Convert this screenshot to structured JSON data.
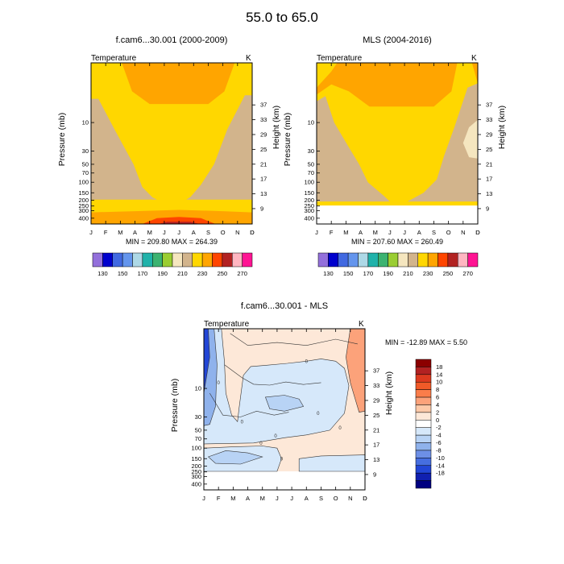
{
  "figure": {
    "title": "55.0 to  65.0"
  },
  "months": [
    "J",
    "F",
    "M",
    "A",
    "M",
    "J",
    "J",
    "A",
    "S",
    "O",
    "N",
    "D"
  ],
  "pressure_ticks": [
    {
      "p": 10,
      "label": "10"
    },
    {
      "p": 30,
      "label": "30"
    },
    {
      "p": 50,
      "label": "50"
    },
    {
      "p": 70,
      "label": "70"
    },
    {
      "p": 100,
      "label": "100"
    },
    {
      "p": 150,
      "label": "150"
    },
    {
      "p": 200,
      "label": "200"
    },
    {
      "p": 250,
      "label": "250"
    },
    {
      "p": 300,
      "label": "300"
    },
    {
      "p": 400,
      "label": "400"
    }
  ],
  "height_ticks": [
    {
      "km": 9,
      "label": "9"
    },
    {
      "km": 13,
      "label": "13"
    },
    {
      "km": 17,
      "label": "17"
    },
    {
      "km": 21,
      "label": "21"
    },
    {
      "km": 25,
      "label": "25"
    },
    {
      "km": 29,
      "label": "29"
    },
    {
      "km": 33,
      "label": "33"
    },
    {
      "km": 37,
      "label": "37"
    }
  ],
  "abs_colorbar": {
    "colors": [
      "#9370db",
      "#0000cd",
      "#4169e1",
      "#6495ed",
      "#add8e6",
      "#20b2aa",
      "#3cb371",
      "#9acd32",
      "#f5e6bf",
      "#d2b48c",
      "#ffd700",
      "#ffa500",
      "#ff4500",
      "#b22222",
      "#ffb6c1",
      "#ff1493"
    ],
    "labels": [
      "130",
      "150",
      "170",
      "190",
      "210",
      "230",
      "250",
      "270"
    ]
  },
  "diff_colorbar": {
    "colors": [
      "#8b0000",
      "#b22222",
      "#dc3a1f",
      "#f05a28",
      "#fa7d4a",
      "#fca27a",
      "#fdc9a8",
      "#fde8d8",
      "#ffffff",
      "#d6e8fa",
      "#b8d3f5",
      "#8fb2ec",
      "#6d8fe6",
      "#466ee0",
      "#2246d6",
      "#1020b0",
      "#000080"
    ],
    "labels": [
      "18",
      "14",
      "10",
      "8",
      "6",
      "4",
      "2",
      "0",
      "-2",
      "-4",
      "-6",
      "-8",
      "-10",
      "-14",
      "-18"
    ]
  },
  "chart_data": [
    {
      "type": "contour",
      "title": "f.cam6...30.001 (2000-2009)",
      "left_label": "Temperature",
      "right_label": "K",
      "xlabel": "",
      "ylabel": "Pressure (mb)",
      "ylabel_right": "Height (km)",
      "stats_text": "MIN = 209.80  MAX = 264.39",
      "min": 209.8,
      "max": 264.39,
      "y_range_mb": [
        1,
        500
      ],
      "data_bottom_mb": 500,
      "regions": [
        {
          "level": 250,
          "color": "#b22222",
          "bounds": [
            [
              4.0,
              1
            ],
            [
              4.0,
              1.6
            ],
            [
              5.0,
              2.2
            ],
            [
              6.0,
              2.2
            ],
            [
              7.0,
              1.6
            ],
            [
              7.0,
              1
            ]
          ]
        },
        {
          "level": 260,
          "color": "#ffb6c1",
          "bounds": [
            [
              5.0,
              1
            ],
            [
              5.2,
              1.3
            ],
            [
              6.8,
              1.3
            ],
            [
              7.0,
              1
            ]
          ]
        },
        {
          "level": 240,
          "color": "#ff4500",
          "bounds": [
            [
              3.0,
              1
            ],
            [
              3.6,
              2.3
            ],
            [
              4.6,
              3.4
            ],
            [
              6.4,
              3.4
            ],
            [
              7.4,
              2.3
            ],
            [
              8.0,
              1
            ]
          ]
        },
        {
          "level": 230,
          "color": "#ffa500",
          "bounds": [
            [
              2.1,
              1
            ],
            [
              2.8,
              3.0
            ],
            [
              4.0,
              4.9
            ],
            [
              8.0,
              4.9
            ],
            [
              9.1,
              3.0
            ],
            [
              9.8,
              1
            ]
          ]
        },
        {
          "level": 230,
          "color": "#ffa500",
          "bounds": [
            [
              0,
              320
            ],
            [
              3,
              305
            ],
            [
              6,
              290
            ],
            [
              9,
              305
            ],
            [
              11,
              320
            ],
            [
              11,
              500
            ],
            [
              0,
              500
            ]
          ]
        },
        {
          "level": 240,
          "color": "#ff4500",
          "bounds": [
            [
              3.5,
              500
            ],
            [
              4.5,
              400
            ],
            [
              6,
              380
            ],
            [
              7.5,
              400
            ],
            [
              8.5,
              500
            ]
          ]
        },
        {
          "level": 250,
          "color": "#b22222",
          "bounds": [
            [
              4.6,
              500
            ],
            [
              5.2,
              460
            ],
            [
              6.8,
              460
            ],
            [
              7.4,
              500
            ]
          ]
        },
        {
          "level": 210,
          "color": "#d2b48c",
          "bounds": [
            [
              0,
              4
            ],
            [
              0.5,
              4
            ],
            [
              1.6,
              13
            ],
            [
              2.9,
              50
            ],
            [
              3.5,
              120
            ],
            [
              4.2,
              180
            ],
            [
              4.5,
              195
            ],
            [
              0,
              195
            ]
          ]
        },
        {
          "level": 210,
          "color": "#d2b48c",
          "bounds": [
            [
              11,
              3.5
            ],
            [
              10.5,
              3.5
            ],
            [
              9.3,
              13
            ],
            [
              8.4,
              50
            ],
            [
              7.5,
              110
            ],
            [
              6.8,
              175
            ],
            [
              6.5,
              195
            ],
            [
              11,
              195
            ]
          ]
        }
      ],
      "base_color": "#ffd700"
    },
    {
      "type": "contour",
      "title": "MLS (2004-2016)",
      "left_label": "Temperature",
      "right_label": "K",
      "xlabel": "",
      "ylabel": "Pressure (mb)",
      "ylabel_right": "Height (km)",
      "stats_text": "MIN = 207.60  MAX = 260.49",
      "min": 207.6,
      "max": 260.49,
      "y_range_mb": [
        1,
        500
      ],
      "data_bottom_mb": 245,
      "regions": [
        {
          "level": 240,
          "color": "#ff4500",
          "bounds": [
            [
              2.8,
              1
            ],
            [
              3.2,
              2.2
            ],
            [
              4.5,
              3.3
            ],
            [
              6.5,
              3.3
            ],
            [
              7.8,
              2.2
            ],
            [
              8.2,
              1
            ]
          ]
        },
        {
          "level": 250,
          "color": "#b22222",
          "bounds": [
            [
              3.6,
              1
            ],
            [
              4.3,
              1.9
            ],
            [
              6.8,
              1.9
            ],
            [
              7.4,
              1
            ]
          ]
        },
        {
          "level": 230,
          "color": "#ffa500",
          "bounds": [
            [
              0,
              2.6
            ],
            [
              1.0,
              1.4
            ],
            [
              1.4,
              1
            ],
            [
              9.6,
              1
            ],
            [
              9.2,
              3.0
            ],
            [
              8.0,
              5.4
            ],
            [
              3.6,
              5.4
            ],
            [
              2.2,
              3.0
            ],
            [
              1.0,
              2.3
            ],
            [
              0,
              3.4
            ]
          ]
        },
        {
          "level": 230,
          "color": "#ffa500",
          "bounds": [
            [
              10.6,
              1
            ],
            [
              11,
              1
            ],
            [
              11,
              2.2
            ]
          ]
        },
        {
          "level": 210,
          "color": "#d2b48c",
          "bounds": [
            [
              0,
              4.4
            ],
            [
              0.6,
              3.6
            ],
            [
              1.2,
              10
            ],
            [
              2.2,
              26
            ],
            [
              2.9,
              50
            ],
            [
              3.5,
              100
            ],
            [
              4.6,
              170
            ],
            [
              5.0,
              210
            ],
            [
              0,
              210
            ]
          ]
        },
        {
          "level": 210,
          "color": "#d2b48c",
          "bounds": [
            [
              11,
              2.2
            ],
            [
              10.3,
              2.6
            ],
            [
              9.4,
              12
            ],
            [
              8.7,
              36
            ],
            [
              8.2,
              90
            ],
            [
              7.3,
              150
            ],
            [
              6.2,
              210
            ],
            [
              11,
              210
            ]
          ]
        },
        {
          "level": 200,
          "color": "#f5e6bf",
          "bounds": [
            [
              11,
              9
            ],
            [
              10.4,
              12
            ],
            [
              10.0,
              22
            ],
            [
              10.4,
              38
            ],
            [
              11,
              40
            ]
          ]
        }
      ],
      "base_color": "#ffd700"
    },
    {
      "type": "contour",
      "title": "f.cam6...30.001 - MLS",
      "left_label": "Temperature",
      "right_label": "K",
      "xlabel": "",
      "ylabel": "Pressure (mb)",
      "ylabel_right": "Height (km)",
      "stats_text": "MIN = -12.89  MAX =   5.50",
      "min": -12.89,
      "max": 5.5,
      "y_range_mb": [
        1,
        500
      ],
      "data_bottom_mb": 245,
      "base_color": "#fde8d8",
      "contour_label": "0",
      "regions": [
        {
          "level": 2,
          "color": "#fca27a",
          "bounds": [
            [
              10.0,
              1
            ],
            [
              11,
              1
            ],
            [
              11,
              24
            ],
            [
              10.6,
              25
            ],
            [
              10.0,
              8
            ],
            [
              9.7,
              3
            ]
          ]
        },
        {
          "level": -2,
          "color": "#d6e8fa",
          "bounds": [
            [
              0,
              1
            ],
            [
              1.2,
              1
            ],
            [
              1.4,
              3.5
            ],
            [
              1.5,
              12
            ],
            [
              1.9,
              28
            ],
            [
              2.3,
              36
            ],
            [
              2.4,
              22
            ],
            [
              2.7,
              6
            ],
            [
              3.2,
              4.3
            ],
            [
              4.2,
              4.1
            ],
            [
              5.7,
              3.8
            ],
            [
              7.0,
              3.5
            ],
            [
              8.0,
              3.2
            ],
            [
              9.0,
              3.5
            ],
            [
              9.6,
              4.6
            ],
            [
              9.9,
              9
            ],
            [
              9.6,
              26
            ],
            [
              8.6,
              50
            ],
            [
              7.0,
              60
            ],
            [
              5.5,
              67
            ],
            [
              3.4,
              82
            ],
            [
              0,
              85
            ]
          ]
        },
        {
          "level": -2,
          "color": "#d6e8fa",
          "bounds": [
            [
              0,
              100
            ],
            [
              2.0,
              95
            ],
            [
              4.0,
              92
            ],
            [
              5.0,
              100
            ],
            [
              5.3,
              150
            ],
            [
              5.0,
              245
            ],
            [
              0,
              245
            ]
          ]
        },
        {
          "level": -2,
          "color": "#d6e8fa",
          "bounds": [
            [
              6.5,
              150
            ],
            [
              8.0,
              135
            ],
            [
              11,
              130
            ],
            [
              11,
              245
            ],
            [
              6.5,
              245
            ]
          ]
        },
        {
          "level": -4,
          "color": "#b8d3f5",
          "bounds": [
            [
              4.2,
              14
            ],
            [
              5.5,
              13
            ],
            [
              6.5,
              15
            ],
            [
              6.8,
              20
            ],
            [
              5.5,
              24
            ],
            [
              4.5,
              22
            ]
          ]
        },
        {
          "level": -4,
          "color": "#b8d3f5",
          "bounds": [
            [
              0.3,
              140
            ],
            [
              1.5,
              110
            ],
            [
              3.0,
              120
            ],
            [
              4.0,
              140
            ],
            [
              2.5,
              185
            ],
            [
              0.8,
              180
            ]
          ]
        },
        {
          "level": -4,
          "color": "#8fb2ec",
          "bounds": [
            [
              0,
              1
            ],
            [
              0.7,
              1
            ],
            [
              0.9,
              4
            ],
            [
              0.8,
              20
            ],
            [
              0.4,
              40
            ],
            [
              0,
              42
            ]
          ]
        },
        {
          "level": -8,
          "color": "#2246d6",
          "bounds": [
            [
              0,
              1
            ],
            [
              0.3,
              1
            ],
            [
              0.4,
              3
            ],
            [
              0,
              12
            ]
          ]
        }
      ],
      "white_regions": [],
      "contour_paths": [
        [
          [
            1.8,
            1.2
          ],
          [
            3.0,
            1.9
          ],
          [
            5.0,
            1.7
          ],
          [
            7.0,
            1.9
          ],
          [
            9.0,
            1.5
          ],
          [
            10.5,
            1.8
          ]
        ],
        [
          [
            1.4,
            4.0
          ],
          [
            2.6,
            6.6
          ],
          [
            3.4,
            8.5
          ],
          [
            4.5,
            8.8
          ],
          [
            5.6,
            7.8
          ],
          [
            6.8,
            8.6
          ],
          [
            8.0,
            8.0
          ]
        ],
        [
          [
            0.4,
            12
          ],
          [
            1.3,
            28
          ],
          [
            2.5,
            30
          ],
          [
            3.6,
            24
          ],
          [
            4.8,
            28
          ],
          [
            5.8,
            25
          ]
        ]
      ]
    }
  ]
}
